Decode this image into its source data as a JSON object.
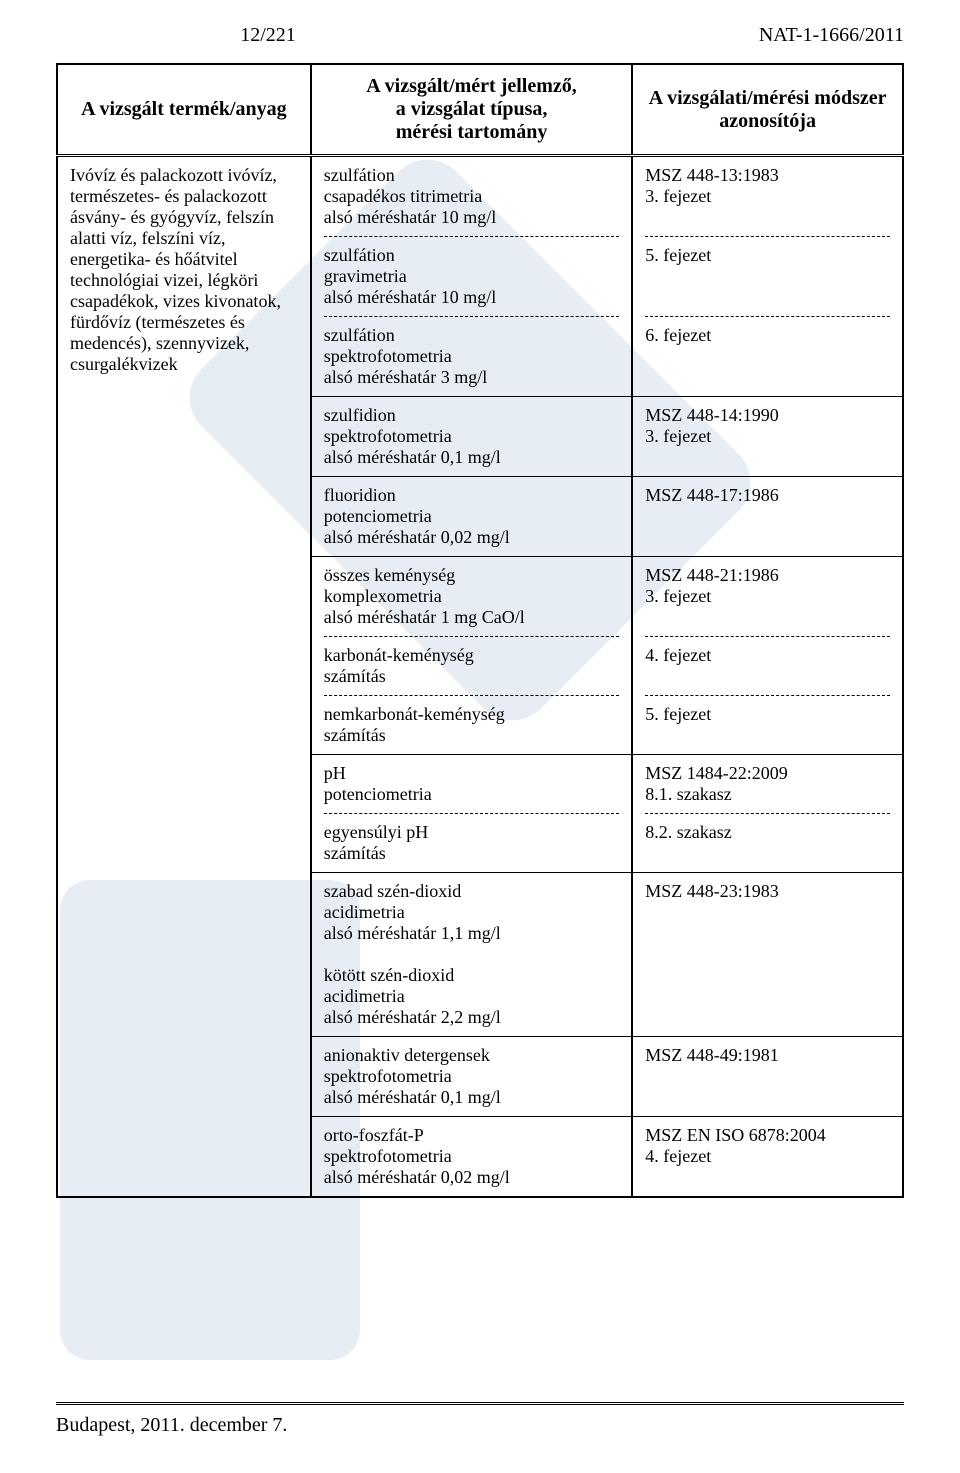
{
  "header": {
    "page_number": "12/221",
    "doc_id": "NAT-1-1666/2011"
  },
  "table": {
    "columns": [
      "A vizsgált termék/anyag",
      "A vizsgált/mért jellemző,\na vizsgálat típusa,\nmérési tartomány",
      "A vizsgálati/mérési módszer\nazonosítója"
    ],
    "product": "Ivóvíz és palackozott ivóvíz, természetes- és palackozott ásvány- és gyógyvíz, felszín alatti víz, felszíni víz, energetika- és hőátvitel technológiai vizei, légköri csapadékok, vizes kivonatok, fürdővíz (természetes és medencés), szennyvizek, csurgalékvizek",
    "groups": [
      {
        "entries": [
          {
            "param": "szulfátion\ncsapadékos titrimetria\nalsó méréshatár 10 mg/l",
            "method": "MSZ 448-13:1983\n3. fejezet"
          },
          {
            "param": "szulfátion\ngravimetria\nalsó méréshatár 10 mg/l",
            "method": "5. fejezet"
          },
          {
            "param": "szulfátion\nspektrofotometria\nalsó méréshatár 3 mg/l",
            "method": "6. fejezet"
          }
        ]
      },
      {
        "entries": [
          {
            "param": "szulfidion\nspektrofotometria\nalsó méréshatár 0,1 mg/l",
            "method": "MSZ 448-14:1990\n3. fejezet"
          }
        ]
      },
      {
        "entries": [
          {
            "param": "fluoridion\npotenciometria\nalsó méréshatár 0,02 mg/l",
            "method": "MSZ 448-17:1986"
          }
        ]
      },
      {
        "entries": [
          {
            "param": "összes keménység\nkomplexometria\nalsó méréshatár 1 mg CaO/l",
            "method": "MSZ 448-21:1986\n3. fejezet"
          },
          {
            "param": "karbonát-keménység\nszámítás",
            "method": "4. fejezet"
          },
          {
            "param": "nemkarbonát-keménység\nszámítás",
            "method": "5. fejezet"
          }
        ]
      },
      {
        "entries": [
          {
            "param": "pH\npotenciometria",
            "method": "MSZ 1484-22:2009\n8.1. szakasz"
          },
          {
            "param": "egyensúlyi pH\nszámítás",
            "method": "8.2. szakasz"
          }
        ]
      },
      {
        "entries": [
          {
            "param": "szabad szén-dioxid\nacidimetria\nalsó méréshatár 1,1 mg/l\n\nkötött szén-dioxid\nacidimetria\nalsó méréshatár 2,2 mg/l",
            "method": "MSZ 448-23:1983"
          }
        ]
      },
      {
        "entries": [
          {
            "param": "anionaktiv detergensek\nspektrofotometria\nalsó méréshatár 0,1 mg/l",
            "method": "MSZ 448-49:1981"
          }
        ]
      },
      {
        "entries": [
          {
            "param": "orto-foszfát-P\nspektrofotometria\nalsó méréshatár 0,02 mg/l",
            "method": "MSZ EN ISO 6878:2004\n4. fejezet"
          }
        ]
      }
    ]
  },
  "footer": {
    "text": "Budapest, 2011. december 7."
  }
}
